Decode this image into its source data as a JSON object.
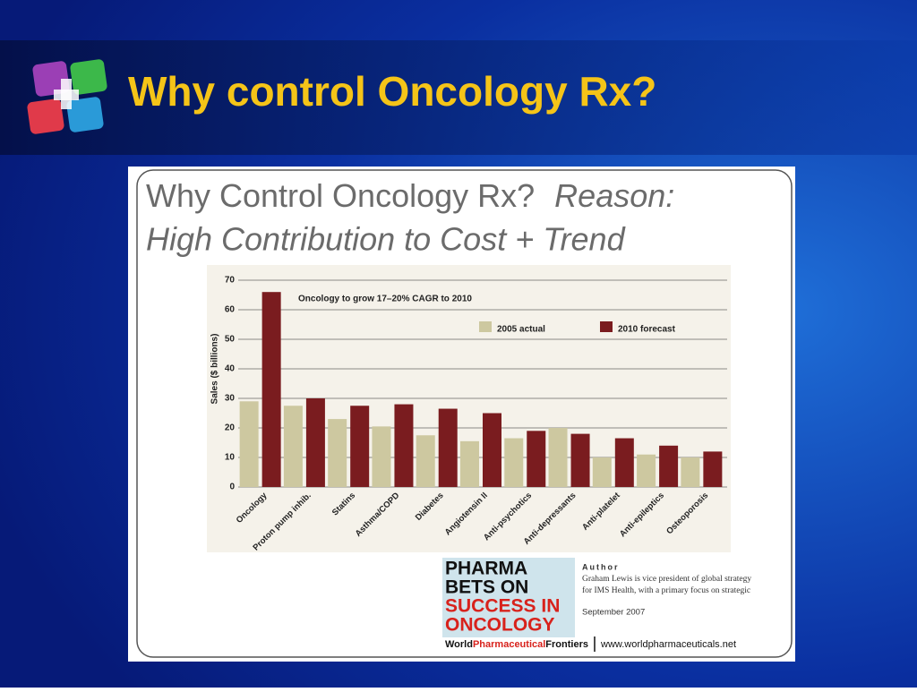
{
  "slide_title": "Why control Oncology Rx?",
  "panel": {
    "heading_1": "Why Control Oncology Rx?",
    "heading_1_italic": "Reason:",
    "heading_2": "High Contribution to Cost + Trend"
  },
  "chart_data": {
    "type": "bar",
    "annotation": "Oncology to grow 17–20% CAGR to 2010",
    "y_label": "Sales ($ billions)",
    "categories": [
      "Oncology",
      "Proton pump inhib.",
      "Statins",
      "Asthma/COPD",
      "Diabetes",
      "Angiotensin II",
      "Anti-psychotics",
      "Anti-depressants",
      "Anti-platelet",
      "Anti-epileptics",
      "Osteoporosis"
    ],
    "series": [
      {
        "name": "2005 actual",
        "color": "#cdc8a0",
        "values": [
          29,
          27.5,
          23,
          20.5,
          17.5,
          15.5,
          16.5,
          20,
          10,
          11,
          10
        ]
      },
      {
        "name": "2010 forecast",
        "color": "#7a1c1f",
        "values": [
          66,
          30,
          27.5,
          28,
          26.5,
          25,
          19,
          18,
          16.5,
          14,
          12
        ]
      }
    ],
    "ylim": [
      0,
      70
    ],
    "yticks": [
      0,
      10,
      20,
      30,
      40,
      50,
      60,
      70
    ],
    "grid": true
  },
  "footer": {
    "cover_1": "PHARMA",
    "cover_2": "BETS ON",
    "cover_3": "SUCCESS IN",
    "cover_4": "ONCOLOGY",
    "brand": [
      "World",
      "Pharmaceutical",
      "Frontiers"
    ],
    "url": "www.worldpharmaceuticals.net",
    "author_heading": "Author",
    "author_1": "Graham Lewis is vice president of global strategy",
    "author_2": "for IMS Health, with a primary focus on strategic",
    "date": "September 2007"
  }
}
